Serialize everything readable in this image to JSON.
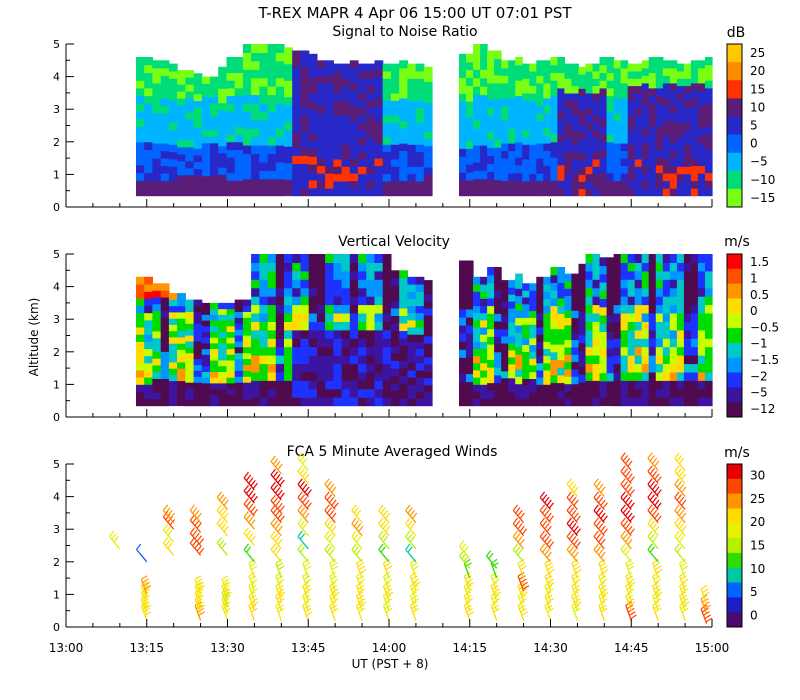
{
  "figure_title": "T-REX   MAPR   4 Apr 06   15:00 UT   07:01   PST",
  "chart_data": [
    {
      "type": "heatmap",
      "title": "Signal to Noise Ratio",
      "ylabel": "",
      "xlabel": "",
      "ylim": [
        0,
        5
      ],
      "xlim_minutes": [
        780,
        900
      ],
      "yticks": [
        "0",
        "1",
        "2",
        "3",
        "4",
        "5"
      ],
      "colorbar_unit": "dB",
      "colorbar_labels": [
        "25",
        "20",
        "15",
        "10",
        "5",
        "0",
        "−5",
        "−10",
        "−15"
      ],
      "colorbar_colors": [
        "#ffc800",
        "#ff8c00",
        "#ff3200",
        "#5a1e78",
        "#2828c8",
        "#0064ff",
        "#00b4ff",
        "#00dc78",
        "#78ff14"
      ],
      "data_segments_minutes": [
        [
          793,
          848
        ],
        [
          853,
          900
        ]
      ],
      "profile_lines": [
        {
          "name": "left_top_m",
          "values": [
            4.6,
            4.5,
            4.4,
            4.2,
            4.1,
            4.0,
            4.3,
            4.6,
            5.0,
            5.0,
            5.0,
            4.9,
            4.8,
            4.7,
            4.5,
            4.4,
            4.5,
            4.4,
            4.5,
            4.4,
            4.5,
            4.4,
            4.3
          ]
        },
        {
          "name": "right_top_m",
          "values": [
            4.7,
            5.0,
            4.8,
            4.5,
            4.6,
            4.4,
            4.5,
            4.6,
            4.4,
            4.3,
            4.4,
            4.6,
            4.5,
            4.4,
            4.5,
            4.6,
            4.5,
            4.4,
            4.5,
            4.6
          ]
        }
      ]
    },
    {
      "type": "heatmap",
      "title": "Vertical Velocity",
      "ylabel": "Altitude (km)",
      "xlabel": "",
      "ylim": [
        0,
        5
      ],
      "xlim_minutes": [
        780,
        900
      ],
      "yticks": [
        "0",
        "1",
        "2",
        "3",
        "4",
        "5"
      ],
      "colorbar_unit": "m/s",
      "colorbar_labels": [
        "1.5",
        "1",
        "0.5",
        "0",
        "−0.5",
        "−1",
        "−1.5",
        "−2",
        "−5",
        "−12"
      ],
      "colorbar_colors": [
        "#ff0000",
        "#ff5000",
        "#ff9600",
        "#ffdc00",
        "#c8ff00",
        "#00dc00",
        "#00c8c8",
        "#0096ff",
        "#1e32ff",
        "#3c14a0",
        "#500a50"
      ],
      "data_segments_minutes": [
        [
          793,
          848
        ],
        [
          853,
          900
        ]
      ],
      "profile_lines": [
        {
          "name": "left_top_m",
          "values": [
            4.3,
            4.1,
            3.8,
            3.6,
            3.5,
            3.5,
            3.6,
            5.0,
            5.0,
            5.0,
            5.0,
            5.0,
            5.0,
            5.0,
            5.0,
            5.0,
            4.5,
            4.3,
            4.2
          ]
        },
        {
          "name": "right_top_m",
          "values": [
            4.8,
            4.3,
            4.6,
            4.2,
            4.4,
            4.1,
            4.3,
            4.6,
            4.4,
            4.7,
            5.0,
            4.9,
            5.0,
            5.0,
            5.0,
            5.0,
            5.0,
            5.0,
            5.0,
            5.0
          ]
        }
      ]
    },
    {
      "type": "scatter",
      "title": "FCA 5 Minute Averaged Winds",
      "xlabel": "UT  (PST + 8)",
      "ylabel": "",
      "ylim": [
        0,
        5
      ],
      "xlim_minutes": [
        780,
        900
      ],
      "xticks": [
        "13:00",
        "13:15",
        "13:30",
        "13:45",
        "14:00",
        "14:15",
        "14:30",
        "14:45",
        "15:00"
      ],
      "yticks": [
        "0",
        "1",
        "2",
        "3",
        "4",
        "5"
      ],
      "colorbar_unit": "m/s",
      "colorbar_labels": [
        "30",
        "25",
        "20",
        "15",
        "10",
        "5",
        "0"
      ],
      "colorbar_colors": [
        "#e60000",
        "#ff4600",
        "#ff9600",
        "#ffdc00",
        "#e6f000",
        "#b4f000",
        "#32dc00",
        "#00c8a0",
        "#0064ff",
        "#1e1ec8",
        "#4b0a6e"
      ],
      "series": [
        {
          "time_min": 790,
          "alt_km": [
            2.4
          ],
          "speed_ms": [
            18
          ]
        },
        {
          "time_min": 795,
          "alt_km": [
            0.2,
            0.4,
            0.6,
            0.8,
            1.0,
            2.0
          ],
          "speed_ms": [
            22,
            21,
            19,
            20,
            23,
            5
          ]
        },
        {
          "time_min": 800,
          "alt_km": [
            2.2,
            2.6,
            3.0,
            3.2
          ],
          "speed_ms": [
            20,
            17,
            26,
            24
          ]
        },
        {
          "time_min": 805,
          "alt_km": [
            0.2,
            0.4,
            0.6,
            0.8,
            1.0,
            2.2,
            2.5,
            2.9,
            3.2
          ],
          "speed_ms": [
            25,
            22,
            20,
            18,
            21,
            28,
            27,
            26,
            24
          ]
        },
        {
          "time_min": 810,
          "alt_km": [
            0.2,
            0.4,
            0.6,
            0.8,
            1.0,
            2.2,
            2.8,
            3.2,
            3.6
          ],
          "speed_ms": [
            18,
            20,
            16,
            22,
            19,
            15,
            22,
            21,
            23
          ]
        },
        {
          "time_min": 815,
          "alt_km": [
            0.2,
            0.5,
            0.8,
            1.1,
            1.5,
            2.0,
            2.5,
            3.0,
            3.4,
            3.8,
            4.2
          ],
          "speed_ms": [
            20,
            22,
            18,
            17,
            19,
            12,
            21,
            24,
            27,
            30,
            29
          ]
        },
        {
          "time_min": 820,
          "alt_km": [
            0.2,
            0.5,
            0.8,
            1.1,
            1.5,
            2.0,
            2.4,
            2.8,
            3.2,
            3.5,
            3.9,
            4.3,
            4.7
          ],
          "speed_ms": [
            19,
            20,
            22,
            18,
            16,
            20,
            21,
            25,
            27,
            28,
            29,
            30,
            24
          ]
        },
        {
          "time_min": 825,
          "alt_km": [
            0.2,
            0.5,
            0.8,
            1.1,
            1.5,
            2.0,
            2.4,
            2.8,
            3.2,
            3.6,
            4.0,
            4.4,
            4.8
          ],
          "speed_ms": [
            21,
            18,
            20,
            17,
            19,
            14,
            10,
            18,
            23,
            27,
            29,
            22,
            19
          ]
        },
        {
          "time_min": 830,
          "alt_km": [
            0.2,
            0.5,
            0.8,
            1.1,
            1.5,
            2.0,
            2.4,
            2.8,
            3.2,
            3.6,
            4.0
          ],
          "speed_ms": [
            20,
            18,
            22,
            19,
            17,
            15,
            19,
            22,
            26,
            28,
            25
          ]
        },
        {
          "time_min": 835,
          "alt_km": [
            0.2,
            0.5,
            0.8,
            1.1,
            1.5,
            2.0,
            2.4,
            2.8,
            3.2
          ],
          "speed_ms": [
            19,
            22,
            20,
            18,
            21,
            16,
            19,
            23,
            20
          ]
        },
        {
          "time_min": 840,
          "alt_km": [
            0.2,
            0.5,
            0.8,
            1.1,
            1.5,
            2.0,
            2.4,
            2.8,
            3.2
          ],
          "speed_ms": [
            18,
            19,
            21,
            17,
            20,
            12,
            15,
            21,
            22
          ]
        },
        {
          "time_min": 845,
          "alt_km": [
            0.2,
            0.5,
            0.8,
            1.1,
            1.5,
            2.0,
            2.4,
            2.8,
            3.2
          ],
          "speed_ms": [
            20,
            17,
            19,
            22,
            18,
            10,
            16,
            20,
            24
          ]
        },
        {
          "time_min": 855,
          "alt_km": [
            0.2,
            0.5,
            0.8,
            1.1,
            1.5,
            1.8,
            2.1
          ],
          "speed_ms": [
            22,
            20,
            19,
            21,
            12,
            15,
            18
          ]
        },
        {
          "time_min": 860,
          "alt_km": [
            0.2,
            0.5,
            0.8,
            1.1,
            1.5,
            1.8
          ],
          "speed_ms": [
            20,
            18,
            22,
            19,
            12,
            13
          ]
        },
        {
          "time_min": 865,
          "alt_km": [
            0.2,
            0.5,
            0.8,
            1.1,
            1.5,
            2.0,
            2.4,
            2.8,
            3.2
          ],
          "speed_ms": [
            21,
            19,
            22,
            27,
            20,
            16,
            24,
            28,
            26
          ]
        },
        {
          "time_min": 870,
          "alt_km": [
            0.2,
            0.5,
            0.8,
            1.1,
            1.5,
            2.0,
            2.4,
            2.8,
            3.2,
            3.6
          ],
          "speed_ms": [
            18,
            20,
            19,
            21,
            22,
            25,
            28,
            26,
            27,
            29
          ]
        },
        {
          "time_min": 875,
          "alt_km": [
            0.2,
            0.5,
            0.8,
            1.1,
            1.5,
            2.0,
            2.4,
            2.8,
            3.2,
            3.6,
            4.0
          ],
          "speed_ms": [
            19,
            22,
            18,
            20,
            21,
            23,
            27,
            29,
            28,
            26,
            22
          ]
        },
        {
          "time_min": 880,
          "alt_km": [
            0.2,
            0.5,
            0.8,
            1.1,
            1.5,
            2.0,
            2.4,
            2.8,
            3.2,
            3.6,
            4.0
          ],
          "speed_ms": [
            20,
            19,
            21,
            18,
            22,
            24,
            26,
            28,
            29,
            27,
            23
          ]
        },
        {
          "time_min": 885,
          "alt_km": [
            0.2,
            0.5,
            0.8,
            1.1,
            1.5,
            2.0,
            2.4,
            2.8,
            3.2,
            3.6,
            4.0,
            4.4,
            4.8
          ],
          "speed_ms": [
            28,
            22,
            19,
            21,
            18,
            17,
            25,
            27,
            29,
            30,
            28,
            27,
            26
          ]
        },
        {
          "time_min": 890,
          "alt_km": [
            0.2,
            0.5,
            0.8,
            1.1,
            1.5,
            2.0,
            2.4,
            2.8,
            3.2,
            3.6,
            4.0,
            4.4,
            4.8
          ],
          "speed_ms": [
            20,
            19,
            22,
            18,
            21,
            12,
            15,
            22,
            27,
            30,
            29,
            28,
            24
          ]
        },
        {
          "time_min": 895,
          "alt_km": [
            0.2,
            0.5,
            0.8,
            1.1,
            1.5,
            2.0,
            2.4,
            2.8,
            3.2,
            3.6,
            4.0,
            4.4,
            4.8
          ],
          "speed_ms": [
            19,
            21,
            18,
            20,
            17,
            14,
            18,
            21,
            23,
            26,
            24,
            22,
            20
          ]
        },
        {
          "time_min": 899,
          "alt_km": [
            0.1,
            0.4,
            0.7
          ],
          "speed_ms": [
            27,
            25,
            20
          ]
        }
      ]
    }
  ]
}
